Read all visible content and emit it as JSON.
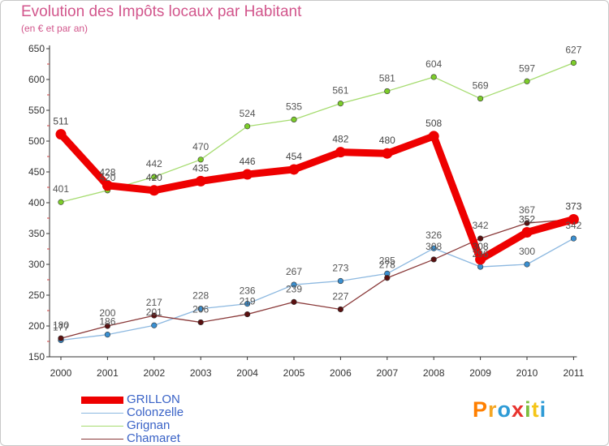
{
  "header": {
    "title": "Evolution des Impôts locaux par Habitant",
    "subtitle": "(en € et par an)"
  },
  "brand": {
    "text": "Proxiti",
    "colors": [
      "#ff7f00",
      "#f5a623",
      "#2e9bd6",
      "#e8332e",
      "#7dbf3f",
      "#f5c518",
      "#2e9bd6"
    ]
  },
  "chart_data": {
    "type": "line",
    "title": "Evolution des Impôts locaux par Habitant",
    "subtitle": "(en € et par an)",
    "xlabel": "",
    "ylabel": "",
    "ylim": [
      150,
      650
    ],
    "yticks": [
      150,
      200,
      250,
      300,
      350,
      400,
      450,
      500,
      550,
      600,
      650
    ],
    "categories": [
      "2000",
      "2001",
      "2002",
      "2003",
      "2004",
      "2005",
      "2006",
      "2007",
      "2008",
      "2009",
      "2010",
      "2011"
    ],
    "grid": false,
    "legend_position": "bottom-left",
    "series": [
      {
        "name": "GRILLON",
        "color": "#ee0000",
        "line_color": "#ee0000",
        "label_color": "#444444",
        "values": [
          511,
          428,
          420,
          435,
          446,
          454,
          482,
          480,
          508,
          308,
          352,
          373
        ],
        "labels": [
          "511",
          "428",
          "420",
          "435",
          "446",
          "454",
          "482",
          "480",
          "508",
          "308",
          "352",
          "373"
        ]
      },
      {
        "name": "Colonzelle",
        "color": "#3a8fd0",
        "line_color": "#8cb8e0",
        "label_color": "#555555",
        "values": [
          177,
          186,
          201,
          228,
          236,
          267,
          273,
          285,
          326,
          296,
          300,
          342
        ],
        "labels": [
          "177",
          "186",
          "201",
          "228",
          "236",
          "267",
          "273",
          "285",
          "326",
          "296",
          "300",
          "342"
        ]
      },
      {
        "name": "Grignan",
        "color": "#7ccc2a",
        "line_color": "#a6dc70",
        "label_color": "#555555",
        "values": [
          401,
          420,
          442,
          470,
          524,
          535,
          561,
          581,
          604,
          569,
          597,
          627
        ],
        "labels": [
          "401",
          "420",
          "442",
          "470",
          "524",
          "535",
          "561",
          "581",
          "604",
          "569",
          "597",
          "627"
        ]
      },
      {
        "name": "Chamaret",
        "color": "#5a1010",
        "line_color": "#8a3a3a",
        "label_color": "#555555",
        "values": [
          180,
          200,
          217,
          206,
          219,
          239,
          227,
          278,
          308,
          342,
          367,
          373
        ],
        "labels": [
          "180",
          "200",
          "217",
          "206",
          "219",
          "239",
          "227",
          "278",
          "308",
          "342",
          "367",
          "373"
        ]
      }
    ]
  }
}
